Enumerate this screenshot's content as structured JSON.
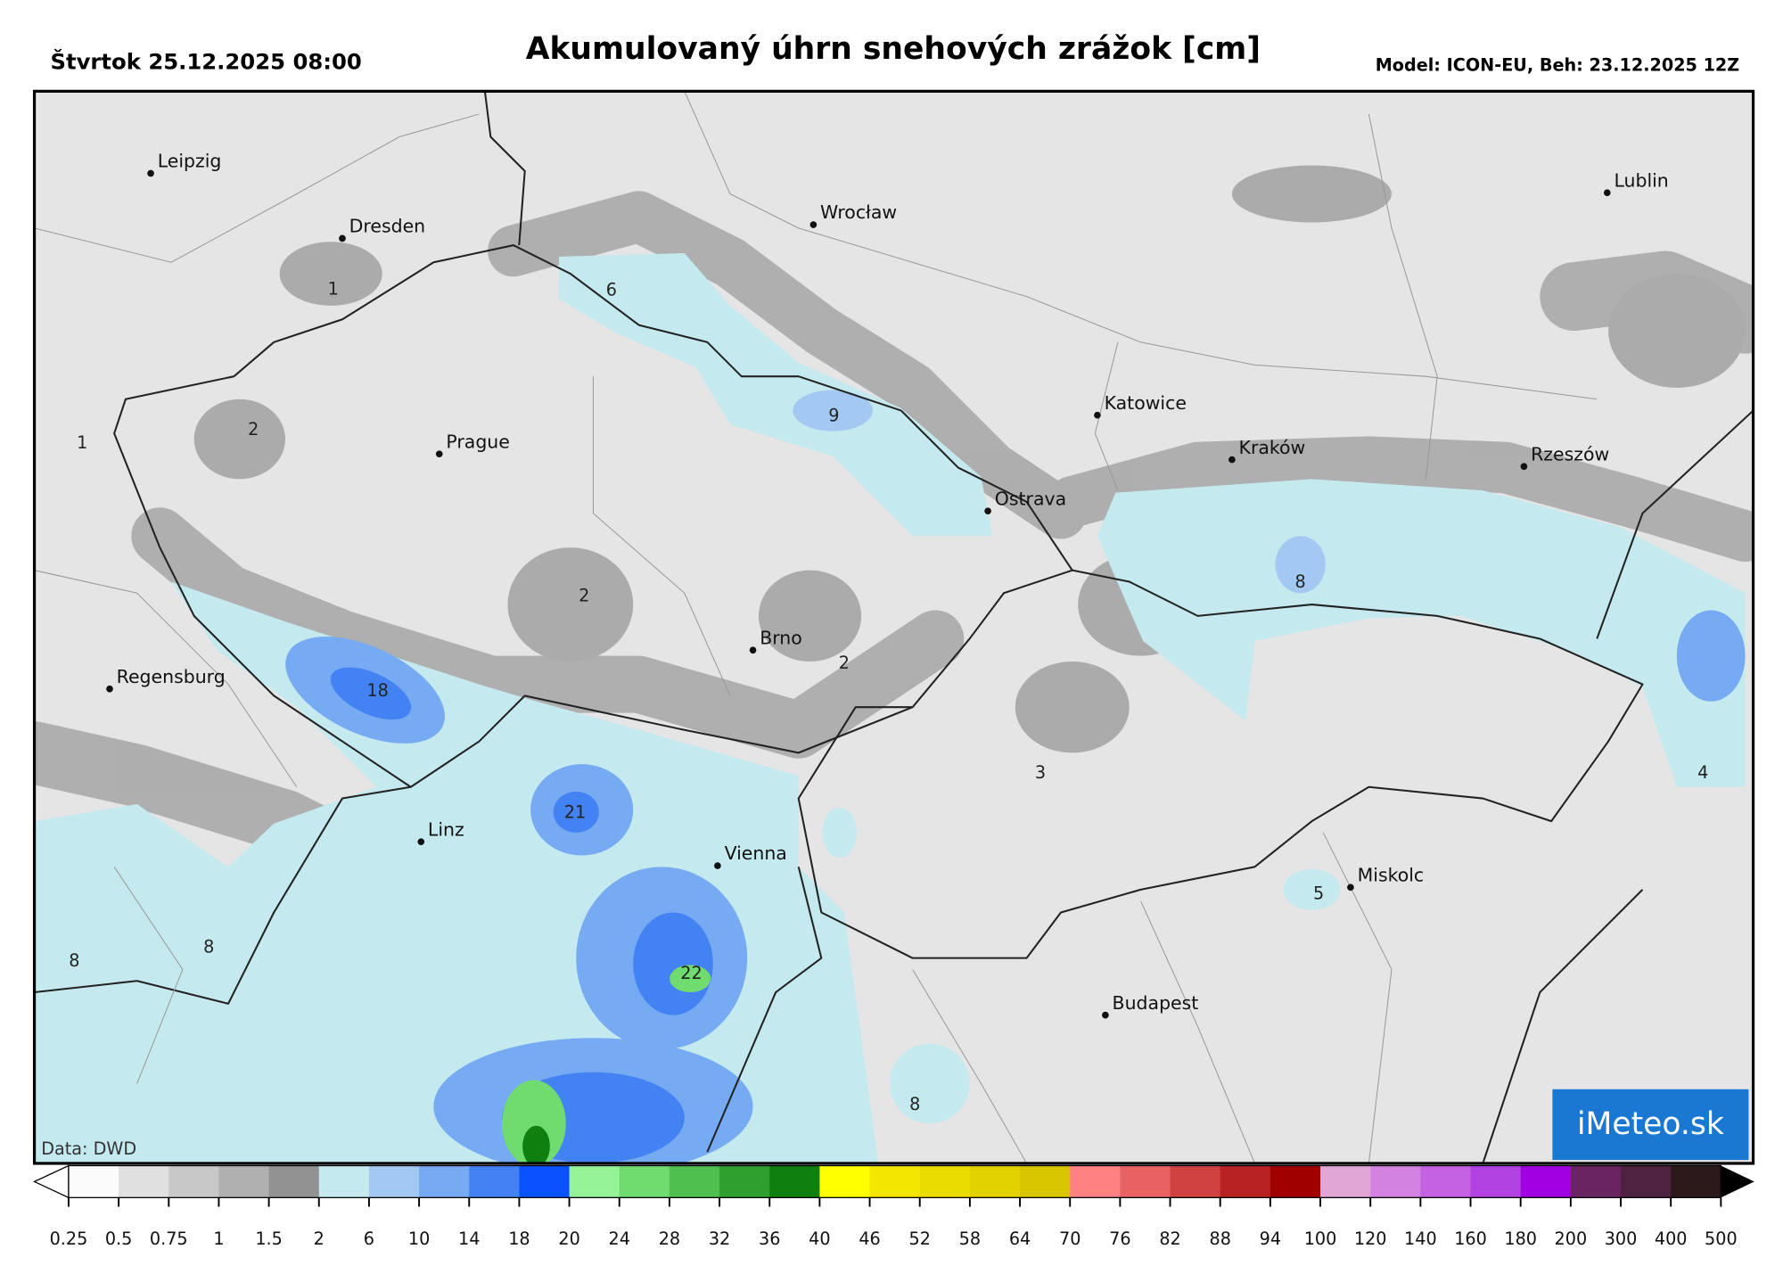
{
  "header": {
    "date": "Štvrtok 25.12.2025 08:00",
    "title": "Akumulovaný úhrn snehových zrážok [cm]",
    "model": "Model: ICON-EU, Beh: 23.12.2025 12Z"
  },
  "map": {
    "cities": [
      "Leipzig",
      "Dresden",
      "Wrocław",
      "Lublin",
      "Prague",
      "Katowice",
      "Kraków",
      "Rzeszów",
      "Ostrava",
      "Brno",
      "Regensburg",
      "Linz",
      "Vienna",
      "Miskolc",
      "Budapest"
    ],
    "value_labels": [
      1,
      6,
      9,
      2,
      1,
      2,
      8,
      18,
      2,
      3,
      4,
      21,
      5,
      8,
      8,
      22,
      8
    ],
    "source": "Data: DWD",
    "logo": "iMeteo.sk"
  },
  "colorbar": {
    "ticks": [
      0.25,
      0.5,
      0.75,
      1,
      1.5,
      2,
      6,
      10,
      14,
      18,
      20,
      24,
      28,
      32,
      36,
      40,
      46,
      52,
      58,
      64,
      70,
      76,
      82,
      88,
      94,
      100,
      120,
      140,
      160,
      180,
      200,
      300,
      400,
      500
    ],
    "colors": [
      "#fbfbfb",
      "#e0e0e0",
      "#c8c8c8",
      "#b0b0b0",
      "#929292",
      "#c4e9ee",
      "#a3c9f2",
      "#76aaf2",
      "#4382f2",
      "#0a52ff",
      "#96f296",
      "#70dc70",
      "#4fc04f",
      "#2fa02f",
      "#0f800f",
      "#ffff00",
      "#f3e600",
      "#eadc00",
      "#e2d200",
      "#dac600",
      "#ff8282",
      "#e86262",
      "#d04242",
      "#b82222",
      "#a00000",
      "#e2a6d6",
      "#d482e2",
      "#c462e2",
      "#b242e2",
      "#a000e2",
      "#6a2462",
      "#4e2240",
      "#2c1a1a"
    ],
    "under_color": "#ffffff",
    "over_color": "#000000"
  }
}
